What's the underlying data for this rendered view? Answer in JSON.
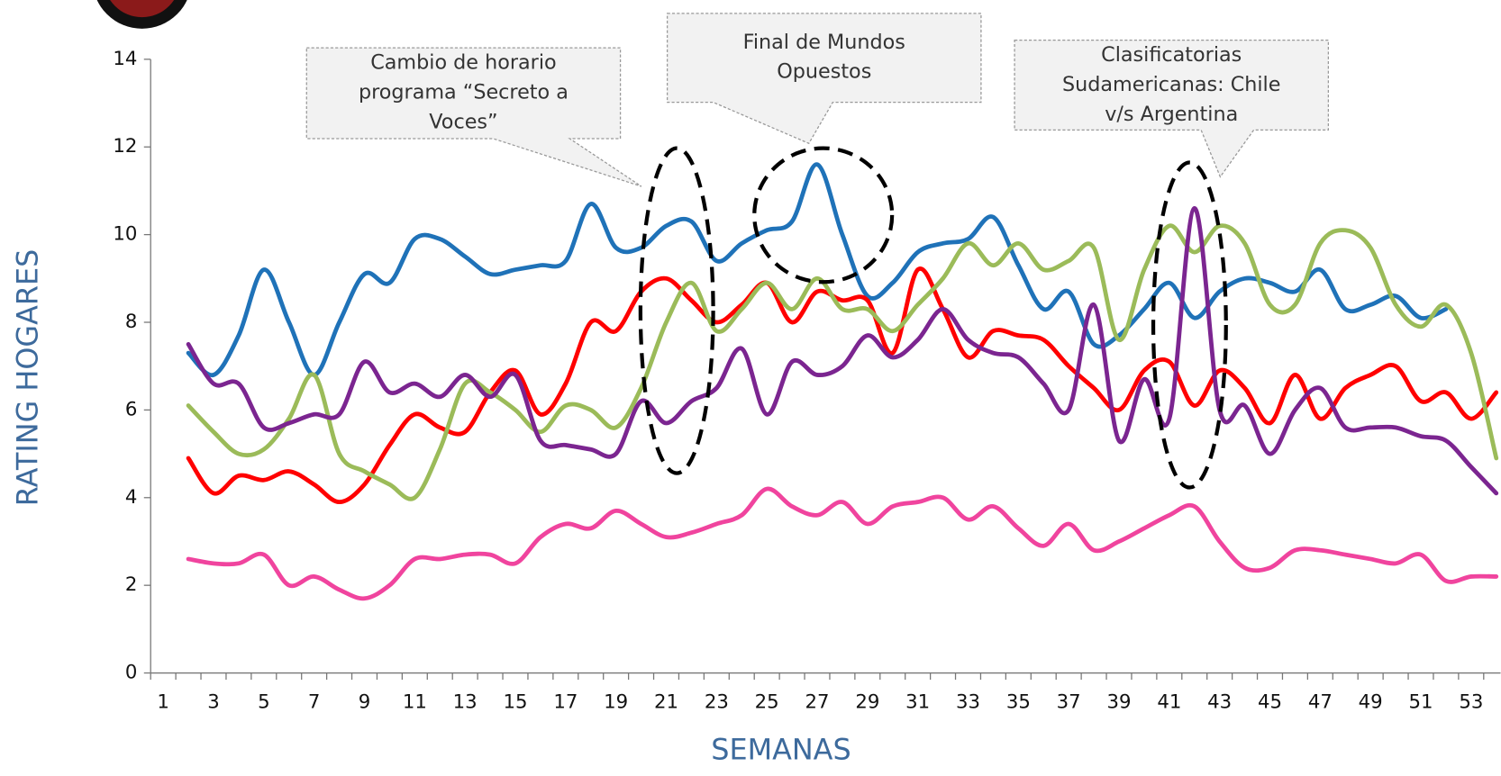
{
  "chart_data": {
    "type": "line",
    "x_label": "SEMANAS",
    "y_label": "RATING HOGARES",
    "categories": [
      1,
      null,
      3,
      null,
      5,
      null,
      7,
      null,
      9,
      null,
      11,
      null,
      13,
      null,
      15,
      null,
      17,
      null,
      19,
      null,
      21,
      null,
      23,
      null,
      25,
      null,
      27,
      null,
      29,
      null,
      31,
      null,
      33,
      null,
      35,
      null,
      37,
      null,
      39,
      null,
      41,
      null,
      43,
      null,
      45,
      null,
      47,
      null,
      49,
      null,
      51,
      null,
      53,
      null
    ],
    "ylim": [
      0,
      14
    ],
    "yticks": [
      0,
      2,
      4,
      6,
      8,
      10,
      12,
      14
    ],
    "grid": false,
    "smooth": true,
    "series": [
      {
        "color": "#1f72b8",
        "values": [
          null,
          7.3,
          6.8,
          7.7,
          9.2,
          8.0,
          6.8,
          8.0,
          9.1,
          8.9,
          9.9,
          9.9,
          9.5,
          9.1,
          9.2,
          9.3,
          9.4,
          10.7,
          9.7,
          9.7,
          10.2,
          10.3,
          9.4,
          9.8,
          10.1,
          10.3,
          11.6,
          10.0,
          8.6,
          8.9,
          9.6,
          9.8,
          9.9,
          10.4,
          9.3,
          8.3,
          8.7,
          7.5,
          7.7,
          8.3,
          8.9,
          8.1,
          8.7,
          9.0,
          8.9,
          8.7,
          9.2,
          8.3,
          8.4,
          8.6,
          8.1,
          8.3,
          null,
          null
        ]
      },
      {
        "color": "#ff0000",
        "values": [
          null,
          4.9,
          4.1,
          4.5,
          4.4,
          4.6,
          4.3,
          3.9,
          4.3,
          5.2,
          5.9,
          5.6,
          5.5,
          6.4,
          6.9,
          5.9,
          6.6,
          8.0,
          7.8,
          8.7,
          9.0,
          8.5,
          8.0,
          8.4,
          8.9,
          8.0,
          8.7,
          8.5,
          8.5,
          7.3,
          9.2,
          8.3,
          7.2,
          7.8,
          7.7,
          7.6,
          7.0,
          6.5,
          6.0,
          6.9,
          7.1,
          6.1,
          6.9,
          6.5,
          5.7,
          6.8,
          5.8,
          6.5,
          6.8,
          7.0,
          6.2,
          6.4,
          5.8,
          6.4
        ]
      },
      {
        "color": "#9bbb59",
        "values": [
          null,
          6.1,
          5.5,
          5.0,
          5.1,
          5.8,
          6.8,
          5.0,
          4.6,
          4.3,
          4.0,
          5.1,
          6.6,
          6.4,
          6.0,
          5.5,
          6.1,
          6.0,
          5.6,
          6.5,
          8.0,
          8.9,
          7.8,
          8.3,
          8.9,
          8.3,
          9.0,
          8.3,
          8.3,
          7.8,
          8.4,
          9.0,
          9.8,
          9.3,
          9.8,
          9.2,
          9.4,
          9.7,
          7.6,
          9.2,
          10.2,
          9.6,
          10.2,
          9.8,
          8.4,
          8.4,
          9.8,
          10.1,
          9.7,
          8.4,
          7.9,
          8.4,
          7.3,
          4.9
        ]
      },
      {
        "color": "#7b2590",
        "values": [
          null,
          7.5,
          6.6,
          6.6,
          5.6,
          5.7,
          5.9,
          5.9,
          7.1,
          6.4,
          6.6,
          6.3,
          6.8,
          6.3,
          6.8,
          5.3,
          5.2,
          5.1,
          5.0,
          6.2,
          5.7,
          6.2,
          6.5,
          7.4,
          5.9,
          7.1,
          6.8,
          7.0,
          7.7,
          7.2,
          7.6,
          8.3,
          7.6,
          7.3,
          7.2,
          6.6,
          6.0,
          8.4,
          5.3,
          6.7,
          5.8,
          10.6,
          6.0,
          6.1,
          5.0,
          6.0,
          6.5,
          5.6,
          5.6,
          5.6,
          5.4,
          5.3,
          4.7,
          4.1
        ]
      },
      {
        "color": "#f0449e",
        "values": [
          null,
          2.6,
          2.5,
          2.5,
          2.7,
          2.0,
          2.2,
          1.9,
          1.7,
          2.0,
          2.6,
          2.6,
          2.7,
          2.7,
          2.5,
          3.1,
          3.4,
          3.3,
          3.7,
          3.4,
          3.1,
          3.2,
          3.4,
          3.6,
          4.2,
          3.8,
          3.6,
          3.9,
          3.4,
          3.8,
          3.9,
          4.0,
          3.5,
          3.8,
          3.3,
          2.9,
          3.4,
          2.8,
          3.0,
          3.3,
          3.6,
          3.8,
          3.0,
          2.4,
          2.4,
          2.8,
          2.8,
          2.7,
          2.6,
          2.5,
          2.7,
          2.1,
          2.2,
          2.2
        ]
      }
    ],
    "annotations": [
      {
        "lines": [
          "Cambio de horario",
          "programa “Secreto a",
          "Voces”"
        ]
      },
      {
        "lines": [
          "Final de Mundos",
          "Opuestos"
        ]
      },
      {
        "lines": [
          "Clasificatorias",
          "Sudamericanas: Chile",
          "v/s Argentina"
        ]
      }
    ]
  }
}
